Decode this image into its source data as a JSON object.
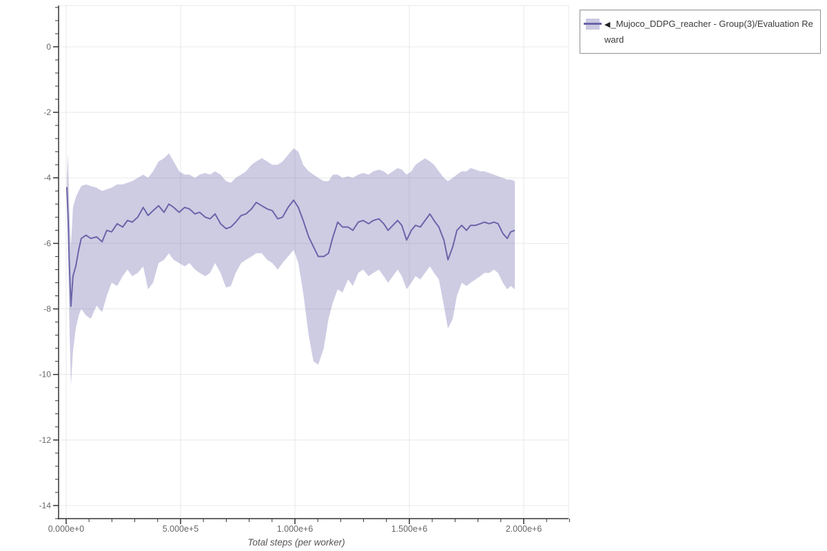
{
  "page": {
    "background": "#ffffff"
  },
  "legend": {
    "arrow": "◀",
    "label": "_Mujoco_DDPG_reacher - Group(3)/Evaluation Reward"
  },
  "chart_data": {
    "type": "line",
    "title": "",
    "xlabel": "Total steps (per worker)",
    "ylabel": "",
    "grid": true,
    "legend_position": "outside-top-right",
    "grid_color": "#e8e8e8",
    "axis_color": "#333333",
    "tick_label_color": "#666666",
    "xlim": [
      -33000,
      2196000
    ],
    "ylim": [
      -14.4,
      1.26
    ],
    "x_ticks": {
      "major": [
        0,
        500000,
        1000000,
        1500000,
        2000000
      ],
      "labels": [
        "0.000e+0",
        "5.000e+5",
        "1.000e+6",
        "1.500e+6",
        "2.000e+6"
      ],
      "major_step": 500000,
      "minor_step": 100000
    },
    "y_ticks": {
      "major": [
        0,
        -2,
        -4,
        -6,
        -8,
        -10,
        -12,
        -14
      ],
      "labels": [
        "0",
        "-2",
        "-4",
        "-6",
        "-8",
        "-10",
        "-12",
        "-14"
      ],
      "minor_step": 0.4
    },
    "series": [
      {
        "name": "◀_Mujoco_DDPG_reacher - Group(3)/Evaluation Reward",
        "color": "#6b64a9",
        "band_opacity": 0.33,
        "x": [
          3000,
          8000,
          14000,
          21000,
          30000,
          42000,
          55000,
          66000,
          87000,
          108000,
          133000,
          157000,
          178000,
          199000,
          223000,
          247000,
          268000,
          289000,
          313000,
          337000,
          358000,
          380000,
          404000,
          428000,
          449000,
          470000,
          494000,
          518000,
          539000,
          563000,
          584000,
          608000,
          629000,
          651000,
          675000,
          699000,
          720000,
          741000,
          765000,
          786000,
          810000,
          831000,
          855000,
          879000,
          901000,
          925000,
          946000,
          970000,
          994000,
          1015000,
          1036000,
          1060000,
          1081000,
          1102000,
          1126000,
          1147000,
          1166000,
          1187000,
          1208000,
          1232000,
          1253000,
          1277000,
          1298000,
          1322000,
          1343000,
          1367000,
          1388000,
          1407000,
          1428000,
          1449000,
          1467000,
          1488000,
          1509000,
          1527000,
          1548000,
          1569000,
          1590000,
          1608000,
          1629000,
          1651000,
          1669000,
          1690000,
          1708000,
          1729000,
          1750000,
          1768000,
          1789000,
          1810000,
          1828000,
          1849000,
          1870000,
          1888000,
          1909000,
          1928000,
          1943000,
          1961000
        ],
        "mean": [
          -4.28,
          -5.1,
          -6.6,
          -7.92,
          -7.0,
          -6.7,
          -6.2,
          -5.85,
          -5.75,
          -5.85,
          -5.8,
          -5.95,
          -5.6,
          -5.65,
          -5.4,
          -5.5,
          -5.3,
          -5.35,
          -5.2,
          -4.9,
          -5.15,
          -5.0,
          -4.85,
          -5.05,
          -4.8,
          -4.9,
          -5.05,
          -4.9,
          -4.95,
          -5.1,
          -5.05,
          -5.2,
          -5.25,
          -5.1,
          -5.4,
          -5.55,
          -5.5,
          -5.35,
          -5.15,
          -5.1,
          -4.95,
          -4.75,
          -4.85,
          -4.95,
          -5.0,
          -5.25,
          -5.2,
          -4.9,
          -4.68,
          -4.9,
          -5.3,
          -5.8,
          -6.1,
          -6.4,
          -6.4,
          -6.3,
          -5.8,
          -5.35,
          -5.5,
          -5.5,
          -5.6,
          -5.35,
          -5.3,
          -5.4,
          -5.3,
          -5.25,
          -5.4,
          -5.6,
          -5.45,
          -5.3,
          -5.45,
          -5.9,
          -5.6,
          -5.45,
          -5.5,
          -5.3,
          -5.1,
          -5.3,
          -5.5,
          -5.9,
          -6.5,
          -6.1,
          -5.6,
          -5.45,
          -5.6,
          -5.45,
          -5.45,
          -5.4,
          -5.35,
          -5.4,
          -5.35,
          -5.4,
          -5.7,
          -5.85,
          -5.65,
          -5.6
        ],
        "upper": [
          -4.0,
          -3.25,
          -4.9,
          -6.1,
          -4.9,
          -4.6,
          -4.4,
          -4.25,
          -4.2,
          -4.25,
          -4.3,
          -4.4,
          -4.35,
          -4.3,
          -4.2,
          -4.2,
          -4.15,
          -4.1,
          -4.0,
          -3.9,
          -4.0,
          -3.8,
          -3.5,
          -3.4,
          -3.25,
          -3.5,
          -3.8,
          -3.9,
          -3.9,
          -4.0,
          -3.9,
          -3.85,
          -3.9,
          -3.8,
          -3.9,
          -4.1,
          -4.15,
          -4.0,
          -3.9,
          -3.8,
          -3.6,
          -3.5,
          -3.4,
          -3.5,
          -3.6,
          -3.6,
          -3.5,
          -3.3,
          -3.1,
          -3.2,
          -3.6,
          -3.8,
          -3.9,
          -4.0,
          -4.1,
          -4.1,
          -3.9,
          -3.9,
          -4.0,
          -3.95,
          -4.0,
          -3.9,
          -3.85,
          -3.9,
          -3.8,
          -3.75,
          -3.8,
          -3.9,
          -3.8,
          -3.7,
          -3.75,
          -3.9,
          -3.8,
          -3.6,
          -3.5,
          -3.4,
          -3.5,
          -3.6,
          -3.8,
          -4.0,
          -4.1,
          -4.0,
          -3.9,
          -3.8,
          -3.8,
          -3.7,
          -3.75,
          -3.8,
          -3.8,
          -3.85,
          -3.9,
          -3.95,
          -4.0,
          -4.05,
          -4.05,
          -4.1
        ],
        "lower": [
          -4.55,
          -6.0,
          -8.4,
          -10.35,
          -9.3,
          -8.6,
          -8.2,
          -8.0,
          -8.2,
          -8.3,
          -7.9,
          -8.1,
          -7.6,
          -7.2,
          -7.3,
          -7.0,
          -6.8,
          -7.0,
          -6.9,
          -6.7,
          -7.4,
          -7.2,
          -6.6,
          -6.5,
          -6.3,
          -6.5,
          -6.6,
          -6.7,
          -6.6,
          -6.8,
          -6.9,
          -7.0,
          -6.9,
          -6.6,
          -6.9,
          -7.35,
          -7.3,
          -6.9,
          -6.6,
          -6.5,
          -6.4,
          -6.3,
          -6.3,
          -6.5,
          -6.6,
          -6.8,
          -6.6,
          -6.4,
          -6.2,
          -6.6,
          -7.5,
          -8.8,
          -9.6,
          -9.7,
          -9.2,
          -8.3,
          -7.8,
          -7.4,
          -7.5,
          -7.1,
          -7.3,
          -6.9,
          -6.8,
          -7.0,
          -6.9,
          -6.8,
          -7.0,
          -7.2,
          -7.0,
          -6.8,
          -7.0,
          -7.4,
          -7.2,
          -7.0,
          -7.1,
          -6.9,
          -6.7,
          -6.9,
          -7.1,
          -7.9,
          -8.6,
          -8.3,
          -7.6,
          -7.2,
          -7.3,
          -7.2,
          -7.1,
          -7.0,
          -6.9,
          -6.9,
          -6.8,
          -6.9,
          -7.2,
          -7.4,
          -7.3,
          -7.4
        ]
      }
    ]
  }
}
